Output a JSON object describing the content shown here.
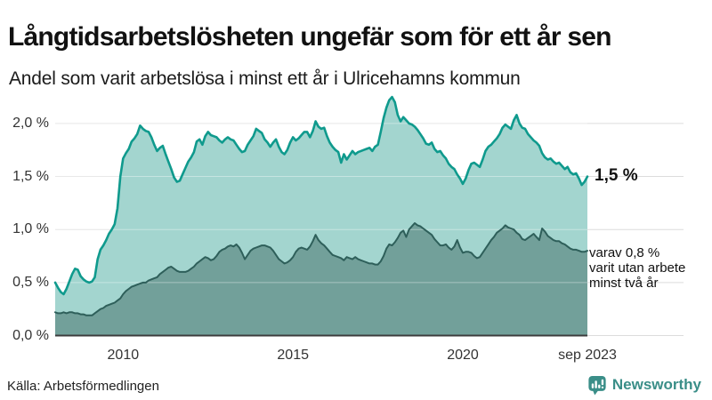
{
  "header": {
    "title": "Långtidsarbetslösheten ungefär som för ett år sen",
    "subtitle": "Andel som varit arbetslösa i minst ett år i Ulricehamns kommun"
  },
  "footer": {
    "source": "Källa: Arbetsförmedlingen",
    "brand": "Newsworthy"
  },
  "colors": {
    "series1_line": "#0f9a8d",
    "series1_fill": "#a3d5cf",
    "series2_line": "#2e5f5a",
    "series2_fill": "#72a09a",
    "gridline": "#dcdcdc",
    "baseline": "#3d3d3d",
    "axis_text": "#333333",
    "brand_teal": "#3a8e88"
  },
  "chart_data": {
    "type": "area",
    "title": "Långtidsarbetslösheten ungefär som för ett år sen",
    "subtitle": "Andel som varit arbetslösa i minst ett år i Ulricehamns kommun",
    "unit": "%",
    "frequency": "monthly",
    "x_start": "2008-01",
    "x_end": "2023-09",
    "ylim": [
      0,
      2.35
    ],
    "grid": true,
    "legend": "none",
    "y_ticks": [
      {
        "value": 0.0,
        "label": "0,0 %"
      },
      {
        "value": 0.5,
        "label": "0,5 %"
      },
      {
        "value": 1.0,
        "label": "1,0 %"
      },
      {
        "value": 1.5,
        "label": "1,5 %"
      },
      {
        "value": 2.0,
        "label": "2,0 %"
      }
    ],
    "x_ticks": [
      {
        "month_index": 24,
        "label": "2010"
      },
      {
        "month_index": 84,
        "label": "2015"
      },
      {
        "month_index": 144,
        "label": "2020"
      },
      {
        "month_index": 188,
        "label": "sep 2023"
      }
    ],
    "series": [
      {
        "name": "Andel arbetslösa minst ett år",
        "line_color": "#0f9a8d",
        "fill_color": "#a3d5cf",
        "line_width": 2.6,
        "latest_value": 1.5,
        "values": [
          0.5,
          0.45,
          0.41,
          0.39,
          0.44,
          0.51,
          0.58,
          0.63,
          0.62,
          0.56,
          0.53,
          0.51,
          0.5,
          0.51,
          0.55,
          0.72,
          0.81,
          0.85,
          0.9,
          0.96,
          1.0,
          1.05,
          1.2,
          1.5,
          1.67,
          1.72,
          1.76,
          1.83,
          1.86,
          1.9,
          1.98,
          1.95,
          1.93,
          1.92,
          1.87,
          1.8,
          1.74,
          1.77,
          1.79,
          1.71,
          1.64,
          1.57,
          1.49,
          1.45,
          1.46,
          1.52,
          1.58,
          1.64,
          1.68,
          1.73,
          1.83,
          1.85,
          1.8,
          1.88,
          1.92,
          1.89,
          1.88,
          1.87,
          1.84,
          1.82,
          1.85,
          1.87,
          1.85,
          1.84,
          1.8,
          1.76,
          1.73,
          1.74,
          1.8,
          1.84,
          1.88,
          1.95,
          1.93,
          1.91,
          1.85,
          1.82,
          1.78,
          1.82,
          1.85,
          1.78,
          1.73,
          1.71,
          1.75,
          1.82,
          1.87,
          1.84,
          1.86,
          1.89,
          1.92,
          1.92,
          1.87,
          1.93,
          2.02,
          1.97,
          1.95,
          1.96,
          1.88,
          1.82,
          1.78,
          1.75,
          1.73,
          1.63,
          1.71,
          1.66,
          1.7,
          1.74,
          1.71,
          1.73,
          1.74,
          1.75,
          1.76,
          1.77,
          1.74,
          1.78,
          1.8,
          1.92,
          2.05,
          2.15,
          2.22,
          2.25,
          2.2,
          2.08,
          2.02,
          2.06,
          2.03,
          2.0,
          1.99,
          1.97,
          1.94,
          1.9,
          1.86,
          1.81,
          1.8,
          1.82,
          1.76,
          1.73,
          1.74,
          1.7,
          1.67,
          1.62,
          1.59,
          1.57,
          1.52,
          1.48,
          1.43,
          1.48,
          1.56,
          1.62,
          1.63,
          1.61,
          1.59,
          1.66,
          1.74,
          1.78,
          1.8,
          1.83,
          1.86,
          1.9,
          1.96,
          1.99,
          1.97,
          1.95,
          2.03,
          2.08,
          2.0,
          1.96,
          1.95,
          1.9,
          1.87,
          1.84,
          1.82,
          1.79,
          1.72,
          1.68,
          1.66,
          1.67,
          1.64,
          1.62,
          1.63,
          1.6,
          1.57,
          1.59,
          1.54,
          1.52,
          1.53,
          1.48,
          1.42,
          1.45,
          1.5
        ]
      },
      {
        "name": "varav varit utan arbete minst två år",
        "line_color": "#2e5f5a",
        "fill_color": "#72a09a",
        "line_width": 2,
        "latest_value": 0.8,
        "values": [
          0.22,
          0.21,
          0.21,
          0.22,
          0.21,
          0.22,
          0.22,
          0.21,
          0.21,
          0.2,
          0.2,
          0.19,
          0.19,
          0.19,
          0.21,
          0.23,
          0.25,
          0.26,
          0.28,
          0.29,
          0.3,
          0.31,
          0.33,
          0.35,
          0.39,
          0.42,
          0.44,
          0.46,
          0.47,
          0.48,
          0.49,
          0.5,
          0.5,
          0.52,
          0.53,
          0.54,
          0.55,
          0.58,
          0.6,
          0.62,
          0.64,
          0.65,
          0.63,
          0.61,
          0.6,
          0.6,
          0.6,
          0.61,
          0.63,
          0.65,
          0.68,
          0.7,
          0.72,
          0.74,
          0.73,
          0.71,
          0.72,
          0.75,
          0.79,
          0.81,
          0.82,
          0.84,
          0.85,
          0.84,
          0.86,
          0.83,
          0.78,
          0.72,
          0.76,
          0.8,
          0.82,
          0.83,
          0.84,
          0.85,
          0.85,
          0.84,
          0.83,
          0.8,
          0.76,
          0.72,
          0.7,
          0.68,
          0.69,
          0.71,
          0.74,
          0.79,
          0.82,
          0.83,
          0.82,
          0.81,
          0.84,
          0.89,
          0.95,
          0.9,
          0.87,
          0.85,
          0.82,
          0.79,
          0.76,
          0.75,
          0.74,
          0.73,
          0.71,
          0.74,
          0.73,
          0.72,
          0.74,
          0.72,
          0.71,
          0.7,
          0.69,
          0.68,
          0.68,
          0.67,
          0.67,
          0.7,
          0.75,
          0.82,
          0.86,
          0.85,
          0.88,
          0.92,
          0.97,
          0.99,
          0.93,
          1.0,
          1.03,
          1.06,
          1.04,
          1.03,
          1.01,
          0.99,
          0.97,
          0.95,
          0.91,
          0.88,
          0.85,
          0.85,
          0.86,
          0.83,
          0.81,
          0.84,
          0.9,
          0.83,
          0.78,
          0.79,
          0.79,
          0.78,
          0.75,
          0.73,
          0.74,
          0.78,
          0.82,
          0.86,
          0.9,
          0.93,
          0.97,
          0.99,
          1.01,
          1.04,
          1.02,
          1.01,
          1.0,
          0.97,
          0.95,
          0.91,
          0.9,
          0.92,
          0.94,
          0.96,
          0.93,
          0.9,
          1.01,
          0.98,
          0.94,
          0.92,
          0.9,
          0.89,
          0.89,
          0.87,
          0.86,
          0.84,
          0.82,
          0.81,
          0.81,
          0.8,
          0.79,
          0.79,
          0.8
        ]
      }
    ],
    "annotations": {
      "final_label": "1,5 %",
      "sub_lines": [
        "varav 0,8 %",
        "varit utan arbete",
        "minst två år"
      ]
    }
  }
}
